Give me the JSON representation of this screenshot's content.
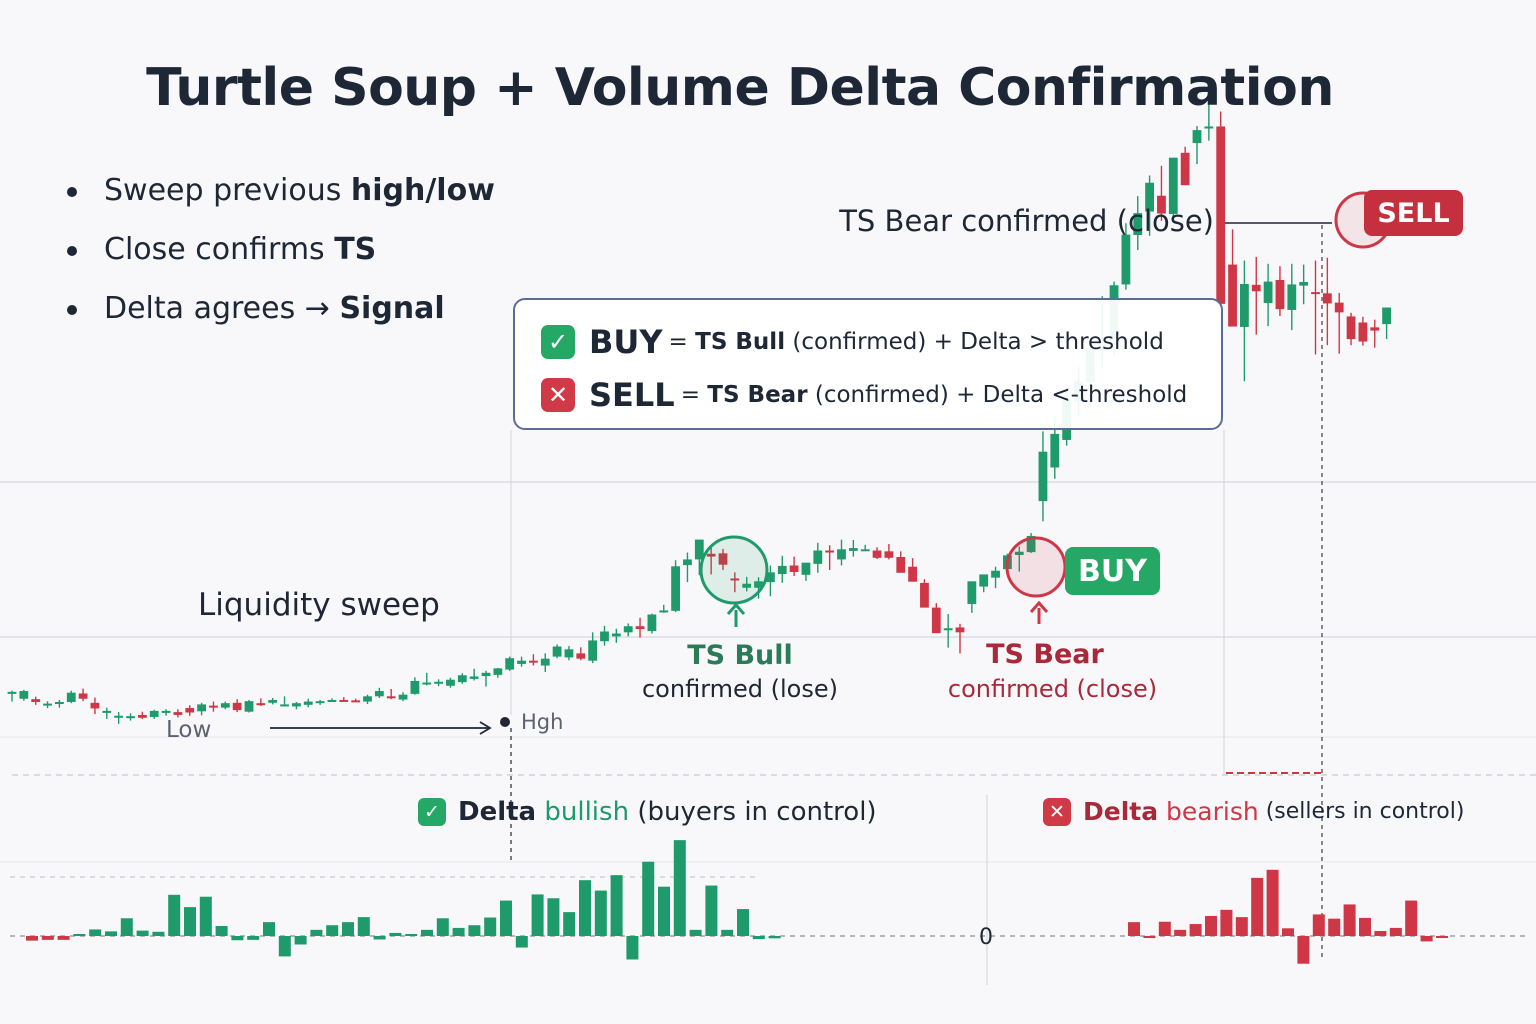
{
  "title": "Turtle Soup + Volume Delta Confirmation",
  "bullets": [
    {
      "text": "Sweep previous ",
      "bold": "high/low"
    },
    {
      "text": "Close confirms ",
      "bold": "TS"
    },
    {
      "text": "Delta agrees → ",
      "bold": "Signal"
    }
  ],
  "rules": {
    "buy": {
      "icon": "check-icon",
      "head": "BUY",
      "eq": "= ",
      "bold": "TS Bull",
      "rest": " (confirmed) + Delta > threshold"
    },
    "sell": {
      "icon": "x-icon",
      "head": "SELL",
      "eq": "= ",
      "bold": "TS Bear",
      "rest": " (confirmed) + Delta <-threshold"
    }
  },
  "annotations": {
    "ts_bear_top": "TS Bear confirmed  (close)",
    "liquidity_sweep": "Liquidity sweep",
    "low": "Low",
    "high": "Hgh",
    "ts_bull_title": "TS Bull",
    "ts_bull_sub": "confirmed (lose)",
    "ts_bear_title": "TS Bear",
    "ts_bear_sub": "confirmed (close)"
  },
  "badges": {
    "sell": "SELL",
    "buy": "BUY"
  },
  "delta_labels": {
    "bullish": {
      "bold": "Delta",
      "colored": " bullish",
      "rest": " (buyers in control)"
    },
    "bearish": {
      "bold": "Delta",
      "colored": " bearish",
      "rest": " (sellers in control)"
    }
  },
  "zero_label": "0",
  "colors": {
    "bull": "#1f9a6a",
    "bear": "#cf3646",
    "text": "#1e2735",
    "bull_text": "#2b7a58",
    "bear_text": "#a82a3a",
    "box_border": "#5a6e94",
    "grid": "#dcdde3"
  },
  "chart_data": [
    {
      "type": "candlestick",
      "title": "",
      "xlabel": "",
      "ylabel": "",
      "ylim": [
        0,
        100
      ],
      "grid": "horizontal",
      "series": [
        {
          "values": [
            [
              10.6,
              11.2,
              8.5,
              10.9
            ],
            [
              9.2,
              11.4,
              8.7,
              11.1
            ],
            [
              9.1,
              9.7,
              7.7,
              8.4
            ],
            [
              7.9,
              8.6,
              6.9,
              8.0
            ],
            [
              8.0,
              8.9,
              7.0,
              8.4
            ],
            [
              8.4,
              11.2,
              8.1,
              10.7
            ],
            [
              10.5,
              11.7,
              8.6,
              9.2
            ],
            [
              8.2,
              9.5,
              5.4,
              6.8
            ],
            [
              5.8,
              7.0,
              4.2,
              6.2
            ],
            [
              5.0,
              5.9,
              3.0,
              5.0
            ],
            [
              4.4,
              5.6,
              3.8,
              4.9
            ],
            [
              5.2,
              6.0,
              4.2,
              4.5
            ],
            [
              4.7,
              6.5,
              4.2,
              6.2
            ],
            [
              5.7,
              6.6,
              5.0,
              6.2
            ],
            [
              5.9,
              6.6,
              4.6,
              5.2
            ],
            [
              6.9,
              7.6,
              5.0,
              5.8
            ],
            [
              6.1,
              8.2,
              5.1,
              7.8
            ],
            [
              7.5,
              8.5,
              6.0,
              7.0
            ],
            [
              7.0,
              8.5,
              6.6,
              8.1
            ],
            [
              8.2,
              9.1,
              5.9,
              6.4
            ],
            [
              6.0,
              8.9,
              5.8,
              8.6
            ],
            [
              8.1,
              9.3,
              7.4,
              7.9
            ],
            [
              8.2,
              9.4,
              7.8,
              8.9
            ],
            [
              7.5,
              9.8,
              7.3,
              7.8
            ],
            [
              7.3,
              8.4,
              6.6,
              8.1
            ],
            [
              7.7,
              9.2,
              7.1,
              8.5
            ],
            [
              8.4,
              8.9,
              7.7,
              8.6
            ],
            [
              8.6,
              9.3,
              8.4,
              8.9
            ],
            [
              8.9,
              9.6,
              8.6,
              8.7
            ],
            [
              8.8,
              9.2,
              8.4,
              8.5
            ],
            [
              8.5,
              10.2,
              7.9,
              9.8
            ],
            [
              9.8,
              11.9,
              9.4,
              11.1
            ],
            [
              9.8,
              11.6,
              9.1,
              9.6
            ],
            [
              9.0,
              10.8,
              8.6,
              10.2
            ],
            [
              10.4,
              14.5,
              10.2,
              13.6
            ],
            [
              13.1,
              15.6,
              12.5,
              13.2
            ],
            [
              12.9,
              14.0,
              12.3,
              13.4
            ],
            [
              12.4,
              14.4,
              11.9,
              13.9
            ],
            [
              13.3,
              15.5,
              12.9,
              15.0
            ],
            [
              14.1,
              16.6,
              13.7,
              14.7
            ],
            [
              14.8,
              16.1,
              12.2,
              15.6
            ],
            [
              15.1,
              16.8,
              14.4,
              16.7
            ],
            [
              16.4,
              19.6,
              16.1,
              19.2
            ],
            [
              17.8,
              19.6,
              17.1,
              18.6
            ],
            [
              18.6,
              20.2,
              17.4,
              18.2
            ],
            [
              17.4,
              20.4,
              15.8,
              19.1
            ],
            [
              19.6,
              22.6,
              19.2,
              22.1
            ],
            [
              19.4,
              22.2,
              18.7,
              21.4
            ],
            [
              20.4,
              21.9,
              18.7,
              19.1
            ],
            [
              18.6,
              25.6,
              18.0,
              23.6
            ],
            [
              23.4,
              27.2,
              22.3,
              25.8
            ],
            [
              24.6,
              26.5,
              23.0,
              25.3
            ],
            [
              25.6,
              27.8,
              24.6,
              27.1
            ],
            [
              27.1,
              29.2,
              24.3,
              26.4
            ],
            [
              25.9,
              30.2,
              25.3,
              30.0
            ],
            [
              31.0,
              32.4,
              30.4,
              31.0
            ],
            [
              30.9,
              43.4,
              30.6,
              41.9
            ],
            [
              42.2,
              45.3,
              38.0,
              43.6
            ],
            [
              43.6,
              47.5,
              39.7,
              48.5
            ],
            [
              45.0,
              46.5,
              39.9,
              44.3
            ],
            [
              45.1,
              46.2,
              41.0,
              42.3
            ],
            [
              38.9,
              40.4,
              35.5,
              38.5
            ],
            [
              36.6,
              39.3,
              35.7,
              37.6
            ],
            [
              36.6,
              39.2,
              33.9,
              38.2
            ],
            [
              38.0,
              42.1,
              34.5,
              40.4
            ],
            [
              40.0,
              44.5,
              37.8,
              42.0
            ],
            [
              42.1,
              44.3,
              39.5,
              40.5
            ],
            [
              39.8,
              42.1,
              38.3,
              42.8
            ],
            [
              42.5,
              47.7,
              40.3,
              45.8
            ],
            [
              45.8,
              47.1,
              41.0,
              45.4
            ],
            [
              43.6,
              48.5,
              42.1,
              46.1
            ],
            [
              45.7,
              48.4,
              44.3,
              46.4
            ],
            [
              46.1,
              47.2,
              46.0,
              46.1
            ],
            [
              45.8,
              46.6,
              43.7,
              44.0
            ],
            [
              45.6,
              47.4,
              43.6,
              44.0
            ],
            [
              44.2,
              45.6,
              40.6,
              40.3
            ],
            [
              41.8,
              43.9,
              38.3,
              38.1
            ],
            [
              37.8,
              38.7,
              32.3,
              31.7
            ],
            [
              31.7,
              32.8,
              27.5,
              25.4
            ],
            [
              26.2,
              30.1,
              21.8,
              26.6
            ],
            [
              26.8,
              27.7,
              20.4,
              25.6
            ],
            [
              32.6,
              37.0,
              30.4,
              38.2
            ],
            [
              36.9,
              39.8,
              35.5,
              39.9
            ],
            [
              39.1,
              41.8,
              36.5,
              40.8
            ],
            [
              41.2,
              45.0,
              41.0,
              44.6
            ],
            [
              44.7,
              46.8,
              40.6,
              45.5
            ],
            [
              45.4,
              50.1,
              45.2,
              49.4
            ],
            [
              58.0,
              75.2,
              53.0,
              70.2
            ],
            [
              66.3,
              79.1,
              63.5,
              74.6
            ],
            [
              73.1,
              87.1,
              71.7,
              83.1
            ],
            [
              82.6,
              91.5,
              78.8,
              87.6
            ],
            [
              87.4,
              92.8,
              81.2,
              95.7
            ],
            [
              95.1,
              108.6,
              90.9,
              97.4
            ],
            [
              97.3,
              112.2,
              93.8,
              111.3
            ],
            [
              111.5,
              126.6,
              110.2,
              123.8
            ],
            [
              123.7,
              133.3,
              120.0,
              129.1
            ],
            [
              129.5,
              138.4,
              123.5,
              136.6
            ],
            [
              133.4,
              140.8,
              127.2,
              129.0
            ],
            [
              128.9,
              141.1,
              127.1,
              142.8
            ],
            [
              144.0,
              145.5,
              137.1,
              136.0
            ],
            [
              146.4,
              150.6,
              141.2,
              149.6
            ],
            [
              150.1,
              158.4,
              147.0,
              150.5
            ],
            [
              150.5,
              154.2,
              107.6,
              106.7
            ],
            [
              116.4,
              125.1,
              108.9,
              101.1
            ],
            [
              101.0,
              117.4,
              87.6,
              111.6
            ],
            [
              111.4,
              118.3,
              99.1,
              109.8
            ],
            [
              106.9,
              116.6,
              101.2,
              112.2
            ],
            [
              112.6,
              116.0,
              103.7,
              105.4
            ],
            [
              105.2,
              116.6,
              100.2,
              111.5
            ],
            [
              111.2,
              116.4,
              106.6,
              112.1
            ],
            [
              109.6,
              117.4,
              94.2,
              109.3
            ],
            [
              109.3,
              118.1,
              96.5,
              106.8
            ],
            [
              107.0,
              109.4,
              94.4,
              104.6
            ],
            [
              103.6,
              104.5,
              96.5,
              98.0
            ],
            [
              102.1,
              103.5,
              96.4,
              97.4
            ],
            [
              100.9,
              102.8,
              95.9,
              100.1
            ],
            [
              101.7,
              104.1,
              98.0,
              105.8
            ]
          ]
        }
      ]
    },
    {
      "type": "bar",
      "title": "",
      "xlabel": "",
      "ylabel": "",
      "ylim": [
        -12,
        28
      ],
      "series": [
        {
          "values": [
            -1.2,
            -1.0,
            -1.0,
            0.0,
            1.7,
            1.2,
            4.6,
            1.4,
            1.1,
            10.7,
            7.5,
            10.2,
            2.6,
            -1.1,
            -1.0,
            3.6,
            -5.3,
            -2.2,
            1.6,
            2.8,
            3.6,
            4.9,
            -0.9,
            0.8,
            0.2,
            1.6,
            4.6,
            2.1,
            2.8,
            4.8,
            9.2,
            -3.0,
            10.8,
            9.8,
            6.2,
            14.5,
            11.8,
            15.8,
            -6.1,
            19.3,
            12.8,
            24.9,
            1.6,
            13.1,
            1.6,
            7.0,
            -0.8,
            -0.6,
            3.6,
            -0.3,
            3.7,
            1.6,
            3.1,
            5.2,
            6.8,
            4.9,
            15.1,
            17.2,
            2.0,
            -7.2,
            5.6,
            4.5,
            8.2,
            4.7,
            1.3,
            2.1,
            9.2,
            -1.4,
            -0.5
          ]
        }
      ]
    }
  ]
}
